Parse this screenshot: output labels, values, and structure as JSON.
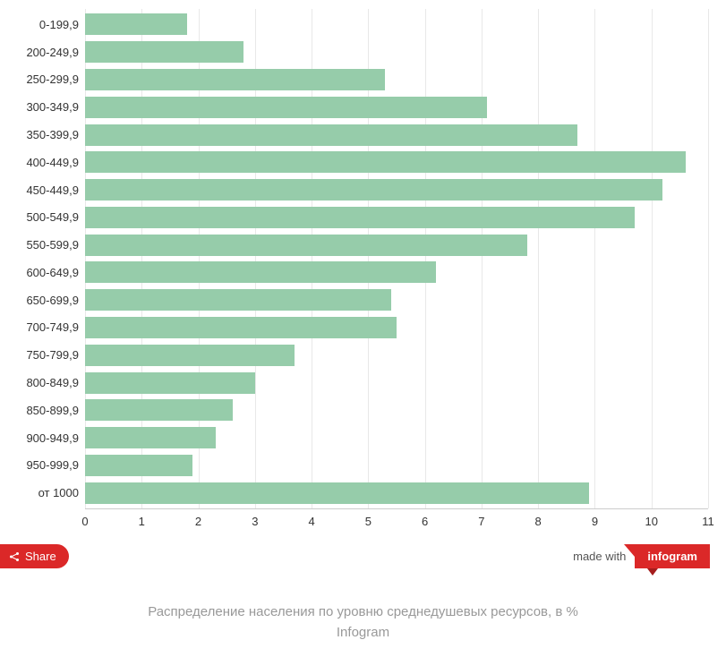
{
  "chart": {
    "type": "bar-horizontal",
    "bar_color": "#96ccaa",
    "background_color": "#ffffff",
    "grid_color": "#e8e8e8",
    "label_fontsize": 13,
    "label_color": "#333333",
    "xlim": [
      0,
      11
    ],
    "xtick_step": 1,
    "xticks": [
      "0",
      "1",
      "2",
      "3",
      "4",
      "5",
      "6",
      "7",
      "8",
      "9",
      "10",
      "11"
    ],
    "categories": [
      "0-199,9",
      "200-249,9",
      "250-299,9",
      "300-349,9",
      "350-399,9",
      "400-449,9",
      "450-449,9",
      "500-549,9",
      "550-599,9",
      "600-649,9",
      "650-699,9",
      "700-749,9",
      "750-799,9",
      "800-849,9",
      "850-899,9",
      "900-949,9",
      "950-999,9",
      "от 1000"
    ],
    "values": [
      1.8,
      2.8,
      5.3,
      7.1,
      8.7,
      10.6,
      10.2,
      9.7,
      7.8,
      6.2,
      5.4,
      5.5,
      3.7,
      3.0,
      2.6,
      2.3,
      1.9,
      8.9
    ]
  },
  "footer": {
    "share_label": "Share",
    "madewith_label": "made with",
    "brand": "infogram"
  },
  "caption": {
    "line1": "Распределение населения по уровню среднедушевых ресурсов, в %",
    "line2": "Infogram"
  }
}
